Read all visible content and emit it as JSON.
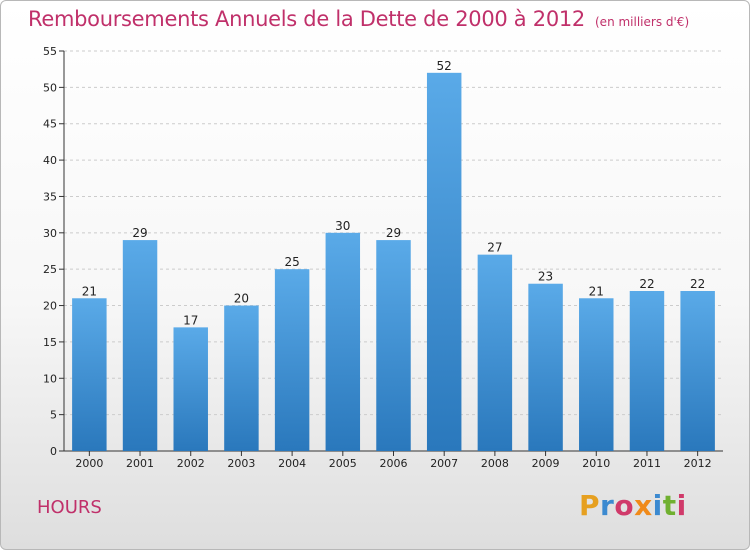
{
  "header": {
    "title": "Remboursements Annuels de la Dette de 2000 à 2012",
    "subtitle": "(en milliers d'€)"
  },
  "footer": {
    "commune": "HOURS",
    "logo_text": "Proxiti",
    "logo_colors": [
      "#e6a020",
      "#3c8ad0",
      "#d03a6a",
      "#f08a1a",
      "#3c8ad0",
      "#70b030",
      "#d03a6a"
    ]
  },
  "colors": {
    "bar_light": "#5aaae8",
    "bar_dark": "#2a78bc",
    "title": "#c0306a",
    "grid": "#cccccc"
  },
  "chart_data": {
    "type": "bar",
    "title": "Remboursements Annuels de la Dette de 2000 à 2012",
    "xlabel": "",
    "ylabel": "",
    "categories": [
      "2000",
      "2001",
      "2002",
      "2003",
      "2004",
      "2005",
      "2006",
      "2007",
      "2008",
      "2009",
      "2010",
      "2011",
      "2012"
    ],
    "values": [
      21,
      29,
      17,
      20,
      25,
      30,
      29,
      52,
      27,
      23,
      21,
      22,
      22
    ],
    "ylim": [
      0,
      55
    ],
    "yticks": [
      "0",
      "5",
      "10",
      "15",
      "20",
      "25",
      "30",
      "35",
      "40",
      "45",
      "50",
      "55"
    ],
    "grid": true,
    "legend": "none"
  }
}
